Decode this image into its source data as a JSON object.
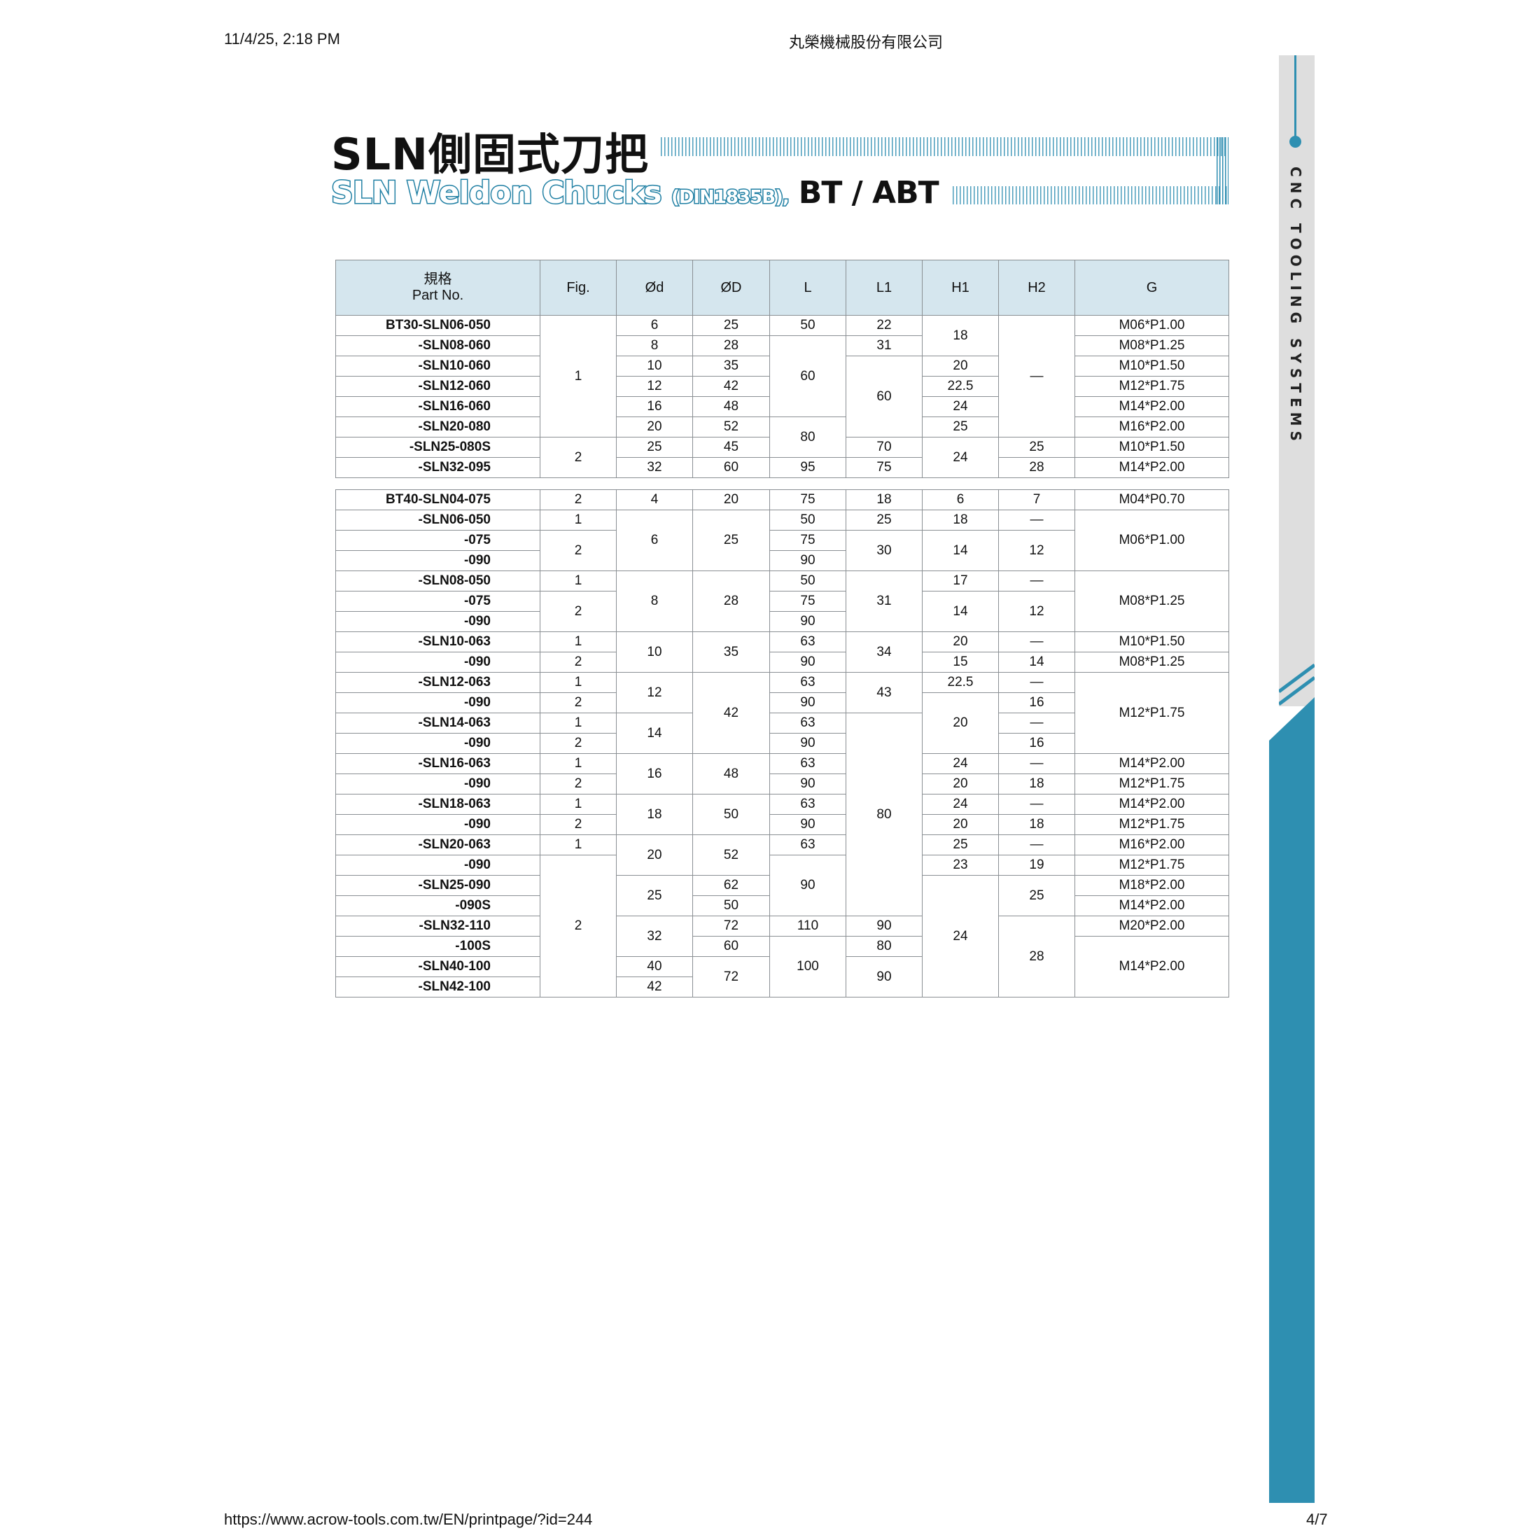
{
  "header": {
    "datetime": "11/4/25, 2:18 PM",
    "site_title": "丸榮機械股份有限公司"
  },
  "footer": {
    "url": "https://www.acrow-tools.com.tw/EN/printpage/?id=244",
    "page": "4/7"
  },
  "sidebar": {
    "text": "CNC TOOLING SYSTEMS",
    "accent_color": "#2e8fb1"
  },
  "title": {
    "zh": "SLN側固式刀把",
    "en": "SLN Weldon Chucks",
    "en_std": "(DIN1835B),",
    "en_type": "BT / ABT"
  },
  "table": {
    "header": {
      "part_zh": "規格",
      "part_en": "Part No.",
      "cols": [
        "Fig.",
        "Ød",
        "ØD",
        "L",
        "L1",
        "H1",
        "H2",
        "G"
      ]
    },
    "header_color": "#d5e6ee",
    "sections": [
      {
        "rows": [
          [
            "BT30-SLN06-050",
            {
              "v": "1",
              "rs": 6
            },
            "6",
            "25",
            "50",
            "22",
            {
              "v": "18",
              "rs": 2
            },
            {
              "v": "—",
              "rs": 6
            },
            "M06*P1.00"
          ],
          [
            "-SLN08-060",
            null,
            "8",
            "28",
            {
              "v": "60",
              "rs": 4
            },
            "31",
            null,
            null,
            "M08*P1.25"
          ],
          [
            "-SLN10-060",
            null,
            "10",
            "35",
            null,
            {
              "v": "60",
              "rs": 4
            },
            "20",
            null,
            "M10*P1.50"
          ],
          [
            "-SLN12-060",
            null,
            "12",
            "42",
            null,
            null,
            "22.5",
            null,
            "M12*P1.75"
          ],
          [
            "-SLN16-060",
            null,
            "16",
            "48",
            null,
            null,
            "24",
            null,
            "M14*P2.00"
          ],
          [
            "-SLN20-080",
            null,
            "20",
            "52",
            {
              "v": "80",
              "rs": 2
            },
            null,
            "25",
            null,
            "M16*P2.00"
          ],
          [
            "-SLN25-080S",
            {
              "v": "2",
              "rs": 2
            },
            "25",
            "45",
            null,
            "70",
            {
              "v": "24",
              "rs": 2
            },
            "25",
            "M10*P1.50"
          ],
          [
            "-SLN32-095",
            null,
            "32",
            "60",
            "95",
            "75",
            null,
            "28",
            "M14*P2.00"
          ]
        ]
      },
      {
        "rows": [
          [
            "BT40-SLN04-075",
            "2",
            "4",
            "20",
            "75",
            "18",
            "6",
            "7",
            "M04*P0.70"
          ],
          [
            "-SLN06-050",
            "1",
            {
              "v": "6",
              "rs": 3
            },
            {
              "v": "25",
              "rs": 3
            },
            "50",
            "25",
            "18",
            "—",
            {
              "v": "M06*P1.00",
              "rs": 3
            }
          ],
          [
            "-075",
            {
              "v": "2",
              "rs": 2
            },
            null,
            null,
            "75",
            {
              "v": "30",
              "rs": 2
            },
            {
              "v": "14",
              "rs": 2
            },
            {
              "v": "12",
              "rs": 2
            },
            null
          ],
          [
            "-090",
            null,
            null,
            null,
            "90",
            null,
            null,
            null,
            null
          ],
          [
            "-SLN08-050",
            "1",
            {
              "v": "8",
              "rs": 3
            },
            {
              "v": "28",
              "rs": 3
            },
            "50",
            {
              "v": "31",
              "rs": 3
            },
            "17",
            "—",
            {
              "v": "M08*P1.25",
              "rs": 3
            }
          ],
          [
            "-075",
            {
              "v": "2",
              "rs": 2
            },
            null,
            null,
            "75",
            null,
            {
              "v": "14",
              "rs": 2
            },
            {
              "v": "12",
              "rs": 2
            },
            null
          ],
          [
            "-090",
            null,
            null,
            null,
            "90",
            null,
            null,
            null,
            null
          ],
          [
            "-SLN10-063",
            "1",
            {
              "v": "10",
              "rs": 2
            },
            {
              "v": "35",
              "rs": 2
            },
            "63",
            {
              "v": "34",
              "rs": 2
            },
            "20",
            "—",
            "M10*P1.50"
          ],
          [
            "-090",
            "2",
            null,
            null,
            "90",
            null,
            "15",
            "14",
            "M08*P1.25"
          ],
          [
            "-SLN12-063",
            "1",
            {
              "v": "12",
              "rs": 2
            },
            {
              "v": "42",
              "rs": 4
            },
            "63",
            {
              "v": "43",
              "rs": 2
            },
            "22.5",
            "—",
            {
              "v": "M12*P1.75",
              "rs": 4
            }
          ],
          [
            "-090",
            "2",
            null,
            null,
            "90",
            null,
            {
              "v": "20",
              "rs": 3
            },
            "16",
            null
          ],
          [
            "-SLN14-063",
            "1",
            {
              "v": "14",
              "rs": 2
            },
            null,
            "63",
            {
              "v": "80",
              "rs": 10
            },
            null,
            "—",
            null
          ],
          [
            "-090",
            "2",
            null,
            null,
            "90",
            null,
            null,
            "16",
            null
          ],
          [
            "-SLN16-063",
            "1",
            {
              "v": "16",
              "rs": 2
            },
            {
              "v": "48",
              "rs": 2
            },
            "63",
            null,
            "24",
            "—",
            "M14*P2.00"
          ],
          [
            "-090",
            "2",
            null,
            null,
            "90",
            null,
            "20",
            "18",
            "M12*P1.75"
          ],
          [
            "-SLN18-063",
            "1",
            {
              "v": "18",
              "rs": 2
            },
            {
              "v": "50",
              "rs": 2
            },
            "63",
            null,
            "24",
            "—",
            "M14*P2.00"
          ],
          [
            "-090",
            "2",
            null,
            null,
            "90",
            null,
            "20",
            "18",
            "M12*P1.75"
          ],
          [
            "-SLN20-063",
            "1",
            {
              "v": "20",
              "rs": 2
            },
            {
              "v": "52",
              "rs": 2
            },
            "63",
            null,
            "25",
            "—",
            "M16*P2.00"
          ],
          [
            "-090",
            {
              "v": "2",
              "rs": 7
            },
            null,
            null,
            {
              "v": "90",
              "rs": 3
            },
            null,
            "23",
            "19",
            "M12*P1.75"
          ],
          [
            "-SLN25-090",
            null,
            {
              "v": "25",
              "rs": 2
            },
            "62",
            null,
            null,
            {
              "v": "24",
              "rs": 6
            },
            {
              "v": "25",
              "rs": 2
            },
            "M18*P2.00"
          ],
          [
            "-090S",
            null,
            null,
            "50",
            null,
            null,
            null,
            null,
            "M14*P2.00"
          ],
          [
            "-SLN32-110",
            null,
            {
              "v": "32",
              "rs": 2
            },
            "72",
            "110",
            "90",
            null,
            {
              "v": "28",
              "rs": 4
            },
            "M20*P2.00"
          ],
          [
            "-100S",
            null,
            null,
            "60",
            {
              "v": "100",
              "rs": 3
            },
            "80",
            null,
            null,
            {
              "v": "M14*P2.00",
              "rs": 3
            }
          ],
          [
            "-SLN40-100",
            null,
            "40",
            {
              "v": "72",
              "rs": 2
            },
            null,
            {
              "v": "90",
              "rs": 2
            },
            null,
            null,
            null
          ],
          [
            "-SLN42-100",
            null,
            "42",
            null,
            null,
            null,
            null,
            null,
            null
          ]
        ]
      }
    ]
  }
}
